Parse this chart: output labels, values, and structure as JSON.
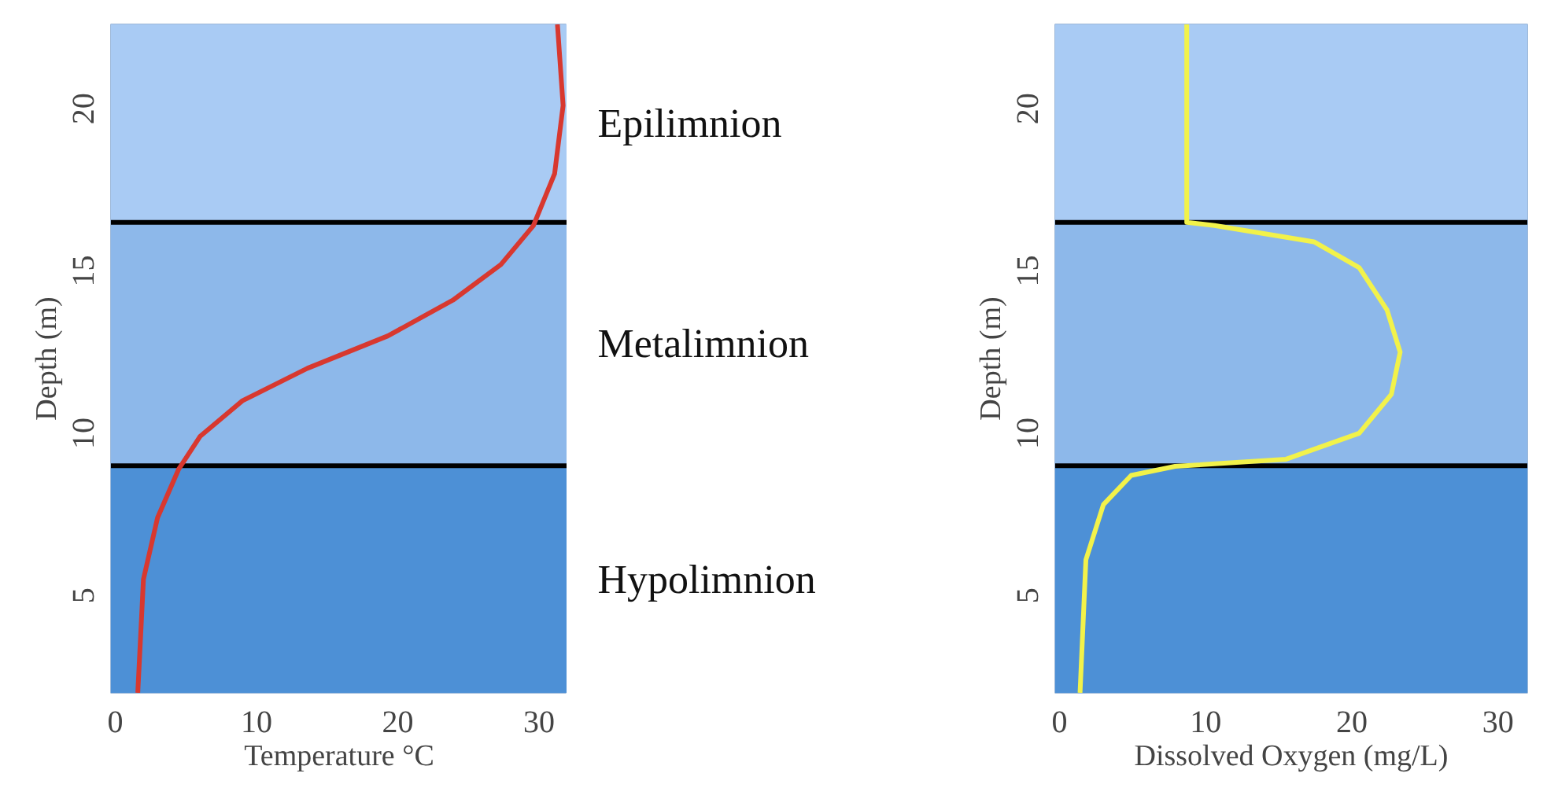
{
  "chart_data": [
    {
      "type": "line",
      "xlabel": "Temperature °C",
      "ylabel": "Depth (m)",
      "xlim": [
        -0.3,
        32
      ],
      "ylim": [
        2,
        22.6
      ],
      "xticks": [
        0,
        10,
        20,
        30
      ],
      "yticks": [
        5,
        10,
        15,
        20
      ],
      "bands": [
        {
          "axis": "y",
          "from": 16.5,
          "to": 22.6,
          "label": "Epilimnion",
          "color": "#a9cbf4"
        },
        {
          "axis": "y",
          "from": 9.0,
          "to": 16.5,
          "label": "Metalimnion",
          "color": "#8db8ea"
        },
        {
          "axis": "y",
          "from": 2,
          "to": 9.0,
          "label": "Hypolimnion",
          "color": "#4d90d6"
        }
      ],
      "ref_lines": [
        {
          "axis": "y",
          "value": 16.5,
          "color": "#000000"
        },
        {
          "axis": "y",
          "value": 9.0,
          "color": "#000000"
        }
      ],
      "series": [
        {
          "color": "#d8382f",
          "x": [
            31.3,
            31.7,
            31.1,
            29.6,
            27.3,
            23.9,
            19.3,
            13.6,
            9.0,
            6.0,
            4.5,
            3.0,
            2.0,
            1.6
          ],
          "values": [
            22.6,
            20.1,
            18.0,
            16.4,
            15.2,
            14.1,
            13.0,
            12.0,
            11.0,
            9.9,
            8.9,
            7.4,
            5.5,
            2.0
          ]
        }
      ]
    },
    {
      "type": "line",
      "xlabel": "Dissolved Oxygen (mg/L)",
      "ylabel": "Depth (m)",
      "xlim": [
        -0.3,
        32
      ],
      "ylim": [
        2,
        22.6
      ],
      "xticks": [
        0,
        10,
        20,
        30
      ],
      "yticks": [
        5,
        10,
        15,
        20
      ],
      "bands": [
        {
          "axis": "y",
          "from": 16.5,
          "to": 22.6,
          "color": "#a9cbf4"
        },
        {
          "axis": "y",
          "from": 9.0,
          "to": 16.5,
          "color": "#8db8ea"
        },
        {
          "axis": "y",
          "from": 2,
          "to": 9.0,
          "color": "#4d90d6"
        }
      ],
      "ref_lines": [
        {
          "axis": "y",
          "value": 16.5,
          "color": "#000000"
        },
        {
          "axis": "y",
          "value": 9.0,
          "color": "#000000"
        }
      ],
      "series": [
        {
          "color": "#f2f24a",
          "x": [
            8.7,
            8.7,
            10.6,
            17.4,
            20.5,
            22.4,
            23.3,
            22.7,
            20.5,
            15.5,
            7.9,
            4.9,
            3.0,
            1.8,
            1.4
          ],
          "values": [
            22.6,
            16.5,
            16.4,
            15.9,
            15.1,
            13.8,
            12.5,
            11.2,
            10.0,
            9.2,
            8.98,
            8.7,
            7.8,
            6.1,
            2.0
          ]
        }
      ]
    }
  ]
}
